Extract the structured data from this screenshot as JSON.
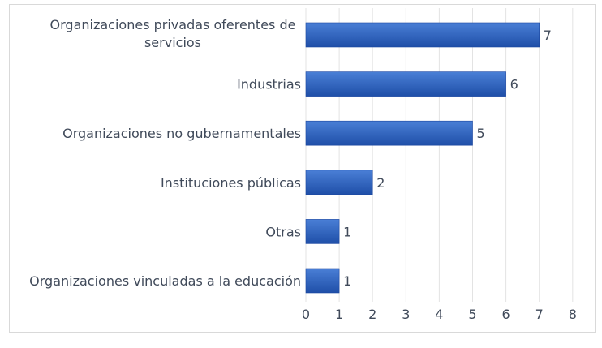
{
  "chart_data": {
    "type": "bar",
    "orientation": "horizontal",
    "categories": [
      "Organizaciones privadas oferentes de servicios",
      "Industrias",
      "Organizaciones no gubernamentales",
      "Instituciones públicas",
      "Otras",
      "Organizaciones vinculadas a la educación"
    ],
    "category_display": [
      [
        "Organizaciones privadas oferentes de",
        "servicios"
      ],
      [
        "Industrias"
      ],
      [
        "Organizaciones no gubernamentales"
      ],
      [
        "Instituciones públicas"
      ],
      [
        "Otras"
      ],
      [
        "Organizaciones vinculadas a la educación"
      ]
    ],
    "values": [
      7,
      6,
      5,
      2,
      1,
      1
    ],
    "data_labels": [
      "7",
      "6",
      "5",
      "2",
      "1",
      "1"
    ],
    "xlim": [
      0,
      8
    ],
    "x_ticks": [
      "0",
      "1",
      "2",
      "3",
      "4",
      "5",
      "6",
      "7",
      "8"
    ],
    "title": "",
    "xlabel": "",
    "ylabel": "",
    "grid": "vertical",
    "legend": "none",
    "colors": {
      "bar_top": "#4a7fd6",
      "bar_bottom": "#1f4fa8",
      "bar_edge": "#1c47a0",
      "grid": "#e3e3e3",
      "text": "#404a5a"
    }
  }
}
